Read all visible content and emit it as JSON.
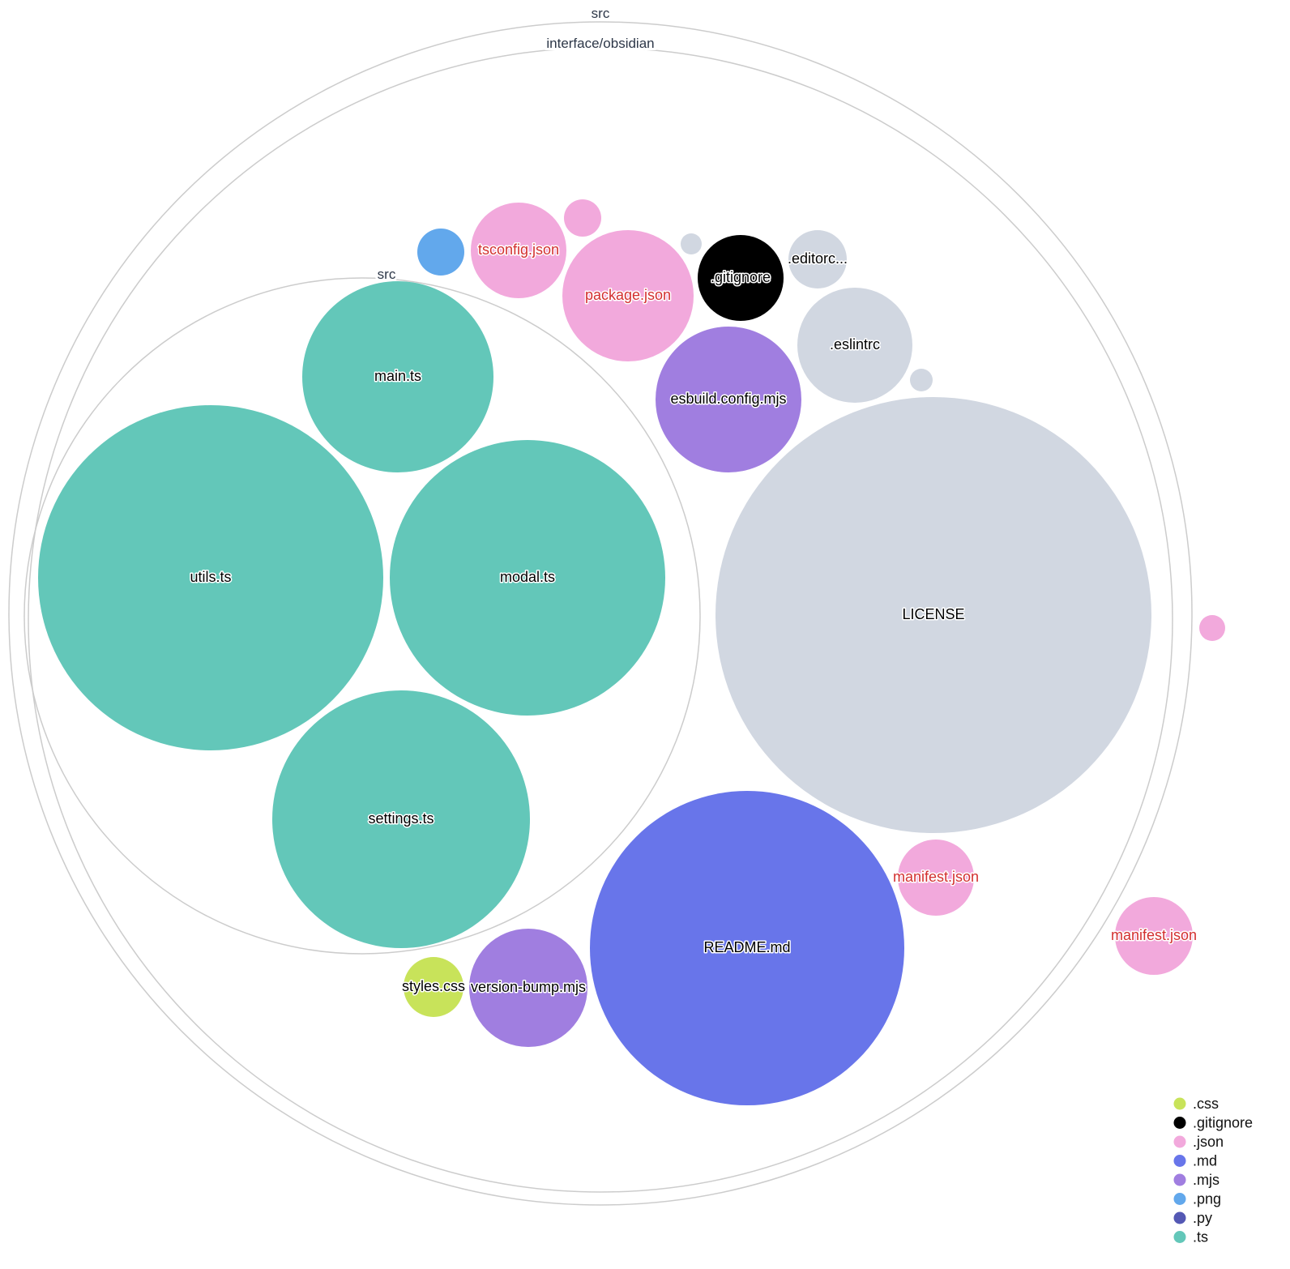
{
  "colors": {
    ".css": "#c8e35a",
    ".gitignore": "#000000",
    ".json": "#f2a9dc",
    ".md": "#6875ea",
    ".mjs": "#a07ee0",
    ".png": "#62a8ec",
    ".py": "#5458b4",
    ".ts": "#63c7b9",
    "none": "#d1d7e1"
  },
  "folders": [
    {
      "name": "src"
    },
    {
      "name": "interface/obsidian"
    },
    {
      "name": "src"
    }
  ],
  "files": [
    {
      "name": "main.ts",
      "ext": ".ts",
      "label": "main.ts"
    },
    {
      "name": "utils.ts",
      "ext": ".ts",
      "label": "utils.ts"
    },
    {
      "name": "modal.ts",
      "ext": ".ts",
      "label": "modal.ts"
    },
    {
      "name": "settings.ts",
      "ext": ".ts",
      "label": "settings.ts"
    },
    {
      "name": "LICENSE",
      "ext": "none",
      "label": "LICENSE"
    },
    {
      "name": "README.md",
      "ext": ".md",
      "label": "README.md"
    },
    {
      "name": "esbuild.config.mjs",
      "ext": ".mjs",
      "label": "esbuild.config.mjs"
    },
    {
      "name": ".eslintrc",
      "ext": "none",
      "label": ".eslintrc"
    },
    {
      "name": "package.json",
      "ext": ".json",
      "label": "package.json"
    },
    {
      "name": "tsconfig.json",
      "ext": ".json",
      "label": "tsconfig.json"
    },
    {
      "name": ".gitignore",
      "ext": ".gitignore",
      "label": ".gitignore"
    },
    {
      "name": ".editorconfig",
      "ext": "none",
      "label": ".editorc..."
    },
    {
      "name": "png",
      "ext": ".png",
      "label": ""
    },
    {
      "name": "json-small",
      "ext": ".json",
      "label": ""
    },
    {
      "name": "grey-small-1",
      "ext": "none",
      "label": ""
    },
    {
      "name": "grey-small-2",
      "ext": "none",
      "label": ""
    },
    {
      "name": "manifest.json",
      "ext": ".json",
      "label": "manifest.json"
    },
    {
      "name": "manifest.json",
      "ext": ".json",
      "label": "manifest.json"
    },
    {
      "name": "json-small-2",
      "ext": ".json",
      "label": ""
    },
    {
      "name": "version-bump.mjs",
      "ext": ".mjs",
      "label": "version-bump.mjs"
    },
    {
      "name": "styles.css",
      "ext": ".css",
      "label": "styles.css"
    }
  ],
  "legend": [
    ".css",
    ".gitignore",
    ".json",
    ".md",
    ".mjs",
    ".png",
    ".py",
    ".ts"
  ]
}
